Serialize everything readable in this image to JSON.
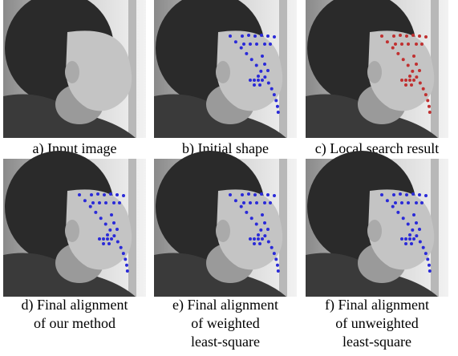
{
  "panels": [
    {
      "caption_lines": [
        "a) Input image"
      ]
    },
    {
      "caption_lines": [
        "b) Initial shape"
      ]
    },
    {
      "caption_lines": [
        "c) Local search result"
      ]
    },
    {
      "caption_lines": [
        "d) Final alignment",
        "of our method"
      ]
    },
    {
      "caption_lines": [
        "e) Final alignment",
        "of weighted",
        "least-square"
      ]
    },
    {
      "caption_lines": [
        "f) Final alignment",
        "of unweighted",
        "least-square"
      ]
    }
  ]
}
